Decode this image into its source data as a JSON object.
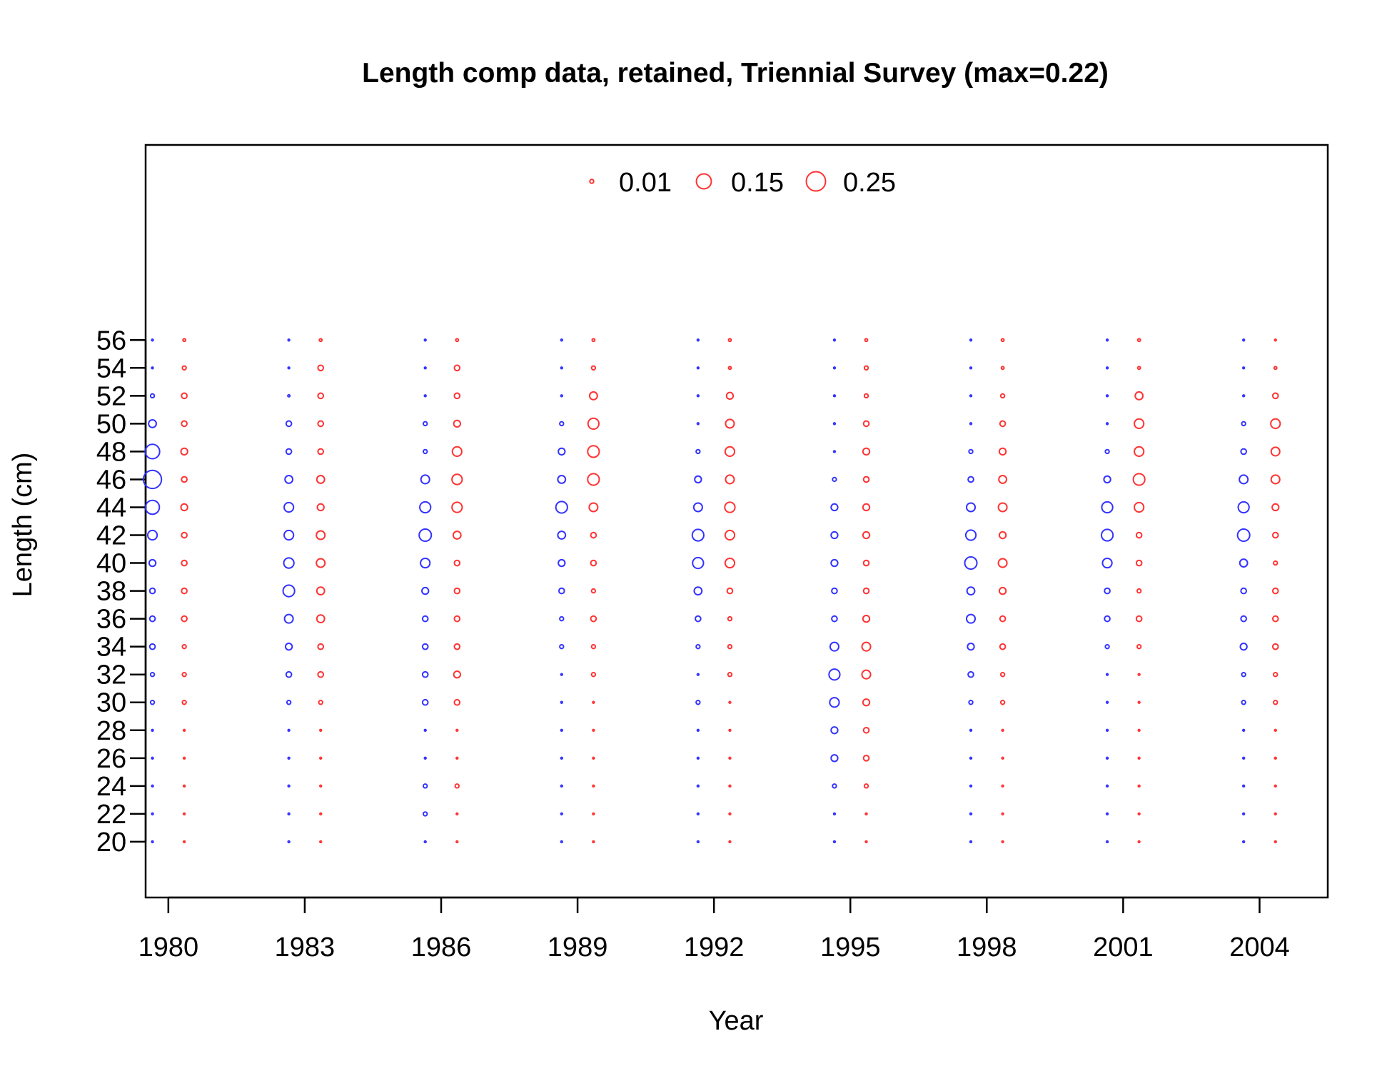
{
  "chart_data": {
    "type": "scatter",
    "subtype": "bubble",
    "title": "Length comp data, retained, Triennial Survey (max=0.22)",
    "xlabel": "Year",
    "ylabel": "Length (cm)",
    "xlim": [
      1979.5,
      2005.5
    ],
    "ylim": [
      16,
      70
    ],
    "x_ticks": [
      "1980",
      "1983",
      "1986",
      "1989",
      "1992",
      "1995",
      "1998",
      "2001",
      "2004"
    ],
    "y_ticks": [
      "20",
      "22",
      "24",
      "26",
      "28",
      "30",
      "32",
      "34",
      "36",
      "38",
      "40",
      "42",
      "44",
      "46",
      "48",
      "50",
      "52",
      "54",
      "56"
    ],
    "grid": false,
    "legend": {
      "placement": "top-center",
      "entries": [
        {
          "label": "0.01",
          "value": 0.01
        },
        {
          "label": "0.15",
          "value": 0.15
        },
        {
          "label": "0.25",
          "value": 0.25
        }
      ]
    },
    "colors": {
      "blue": "#3333ff",
      "red": "#ff3333"
    },
    "lengths": [
      20,
      22,
      24,
      26,
      28,
      30,
      32,
      34,
      36,
      38,
      40,
      42,
      44,
      46,
      48,
      50,
      52,
      54,
      56
    ],
    "series": [
      {
        "color": "blue",
        "year": 1980,
        "values": [
          0.002,
          0.002,
          0.002,
          0.002,
          0.002,
          0.01,
          0.01,
          0.02,
          0.02,
          0.02,
          0.03,
          0.06,
          0.13,
          0.22,
          0.14,
          0.04,
          0.01,
          0.002,
          0.002
        ]
      },
      {
        "color": "red",
        "year": 1980,
        "values": [
          0.002,
          0.002,
          0.002,
          0.002,
          0.002,
          0.01,
          0.01,
          0.01,
          0.02,
          0.02,
          0.02,
          0.02,
          0.03,
          0.02,
          0.03,
          0.02,
          0.02,
          0.01,
          0.005
        ]
      },
      {
        "color": "blue",
        "year": 1983,
        "values": [
          0.002,
          0.002,
          0.002,
          0.002,
          0.002,
          0.01,
          0.02,
          0.03,
          0.05,
          0.09,
          0.07,
          0.06,
          0.06,
          0.04,
          0.02,
          0.02,
          0.003,
          0.002,
          0.002
        ]
      },
      {
        "color": "red",
        "year": 1983,
        "values": [
          0.002,
          0.002,
          0.002,
          0.002,
          0.002,
          0.01,
          0.02,
          0.02,
          0.04,
          0.04,
          0.05,
          0.05,
          0.03,
          0.04,
          0.02,
          0.02,
          0.02,
          0.02,
          0.005
        ]
      },
      {
        "color": "blue",
        "year": 1986,
        "values": [
          0.002,
          0.01,
          0.01,
          0.002,
          0.002,
          0.02,
          0.02,
          0.02,
          0.02,
          0.03,
          0.06,
          0.1,
          0.08,
          0.05,
          0.01,
          0.01,
          0.002,
          0.002,
          0.002
        ]
      },
      {
        "color": "red",
        "year": 1986,
        "values": [
          0.002,
          0.002,
          0.01,
          0.002,
          0.002,
          0.02,
          0.03,
          0.02,
          0.02,
          0.02,
          0.02,
          0.04,
          0.07,
          0.07,
          0.06,
          0.03,
          0.02,
          0.02,
          0.005
        ]
      },
      {
        "color": "blue",
        "year": 1989,
        "values": [
          0.002,
          0.002,
          0.002,
          0.002,
          0.002,
          0.002,
          0.002,
          0.01,
          0.01,
          0.02,
          0.03,
          0.04,
          0.09,
          0.04,
          0.03,
          0.01,
          0.002,
          0.002,
          0.002
        ]
      },
      {
        "color": "red",
        "year": 1989,
        "values": [
          0.002,
          0.002,
          0.002,
          0.002,
          0.002,
          0.002,
          0.01,
          0.01,
          0.02,
          0.01,
          0.02,
          0.02,
          0.05,
          0.09,
          0.09,
          0.08,
          0.04,
          0.01,
          0.005
        ]
      },
      {
        "color": "blue",
        "year": 1992,
        "values": [
          0.002,
          0.002,
          0.002,
          0.002,
          0.002,
          0.01,
          0.002,
          0.01,
          0.02,
          0.04,
          0.08,
          0.09,
          0.05,
          0.03,
          0.01,
          0.002,
          0.002,
          0.002,
          0.002
        ]
      },
      {
        "color": "red",
        "year": 1992,
        "values": [
          0.002,
          0.002,
          0.002,
          0.002,
          0.002,
          0.002,
          0.01,
          0.01,
          0.01,
          0.02,
          0.06,
          0.06,
          0.07,
          0.05,
          0.06,
          0.05,
          0.03,
          0.005,
          0.005
        ]
      },
      {
        "color": "blue",
        "year": 1995,
        "values": [
          0.002,
          0.002,
          0.01,
          0.03,
          0.03,
          0.06,
          0.08,
          0.05,
          0.02,
          0.02,
          0.03,
          0.03,
          0.03,
          0.01,
          0.002,
          0.002,
          0.002,
          0.002,
          0.002
        ]
      },
      {
        "color": "red",
        "year": 1995,
        "values": [
          0.002,
          0.002,
          0.01,
          0.02,
          0.02,
          0.03,
          0.05,
          0.05,
          0.03,
          0.02,
          0.02,
          0.03,
          0.03,
          0.02,
          0.03,
          0.02,
          0.01,
          0.01,
          0.005
        ]
      },
      {
        "color": "blue",
        "year": 1998,
        "values": [
          0.002,
          0.002,
          0.002,
          0.002,
          0.002,
          0.01,
          0.02,
          0.03,
          0.05,
          0.04,
          0.1,
          0.07,
          0.05,
          0.02,
          0.01,
          0.002,
          0.002,
          0.002,
          0.002
        ]
      },
      {
        "color": "red",
        "year": 1998,
        "values": [
          0.002,
          0.002,
          0.002,
          0.002,
          0.002,
          0.01,
          0.01,
          0.02,
          0.02,
          0.03,
          0.05,
          0.03,
          0.05,
          0.04,
          0.03,
          0.02,
          0.01,
          0.005,
          0.005
        ]
      },
      {
        "color": "blue",
        "year": 2001,
        "values": [
          0.002,
          0.002,
          0.002,
          0.002,
          0.002,
          0.002,
          0.002,
          0.01,
          0.02,
          0.02,
          0.06,
          0.09,
          0.08,
          0.03,
          0.01,
          0.002,
          0.002,
          0.002,
          0.002
        ]
      },
      {
        "color": "red",
        "year": 2001,
        "values": [
          0.002,
          0.002,
          0.002,
          0.002,
          0.002,
          0.002,
          0.002,
          0.01,
          0.02,
          0.01,
          0.02,
          0.02,
          0.06,
          0.09,
          0.06,
          0.06,
          0.04,
          0.005,
          0.005
        ]
      },
      {
        "color": "blue",
        "year": 2004,
        "values": [
          0.002,
          0.002,
          0.002,
          0.002,
          0.002,
          0.01,
          0.01,
          0.03,
          0.02,
          0.02,
          0.04,
          0.1,
          0.08,
          0.05,
          0.02,
          0.01,
          0.002,
          0.002,
          0.002
        ]
      },
      {
        "color": "red",
        "year": 2004,
        "values": [
          0.002,
          0.002,
          0.002,
          0.002,
          0.002,
          0.01,
          0.01,
          0.02,
          0.02,
          0.02,
          0.01,
          0.02,
          0.03,
          0.05,
          0.05,
          0.06,
          0.02,
          0.005,
          0.002
        ]
      }
    ]
  }
}
